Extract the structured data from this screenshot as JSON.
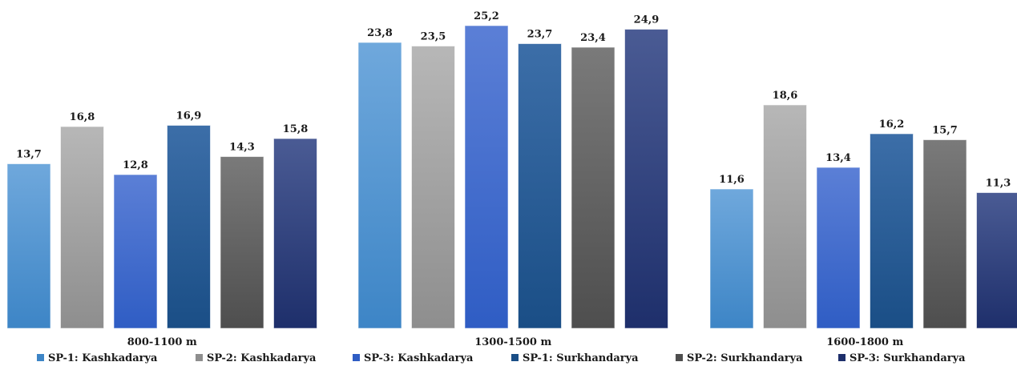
{
  "chart_data": {
    "type": "bar",
    "categories": [
      "800-1100 m",
      "1300-1500 m",
      "1600-1800 m"
    ],
    "series": [
      {
        "name": "SP-1: Kashkadarya",
        "values": [
          13.7,
          23.8,
          11.6
        ],
        "labels": [
          "13,7",
          "23,8",
          "11,6"
        ],
        "color_top": "#6fa8dc",
        "color_bottom": "#3d85c6"
      },
      {
        "name": "SP-2: Kashkadarya",
        "values": [
          16.8,
          23.5,
          18.6
        ],
        "labels": [
          "16,8",
          "23,5",
          "18,6"
        ],
        "color_top": "#b7b7b7",
        "color_bottom": "#8e8e8e"
      },
      {
        "name": "SP-3: Kashkadarya",
        "values": [
          12.8,
          25.2,
          13.4
        ],
        "labels": [
          "12,8",
          "25,2",
          "13,4"
        ],
        "color_top": "#5b7fd6",
        "color_bottom": "#2f5dc4"
      },
      {
        "name": "SP-1: Surkhandarya",
        "values": [
          16.9,
          23.7,
          16.2
        ],
        "labels": [
          "16,9",
          "23,7",
          "16,2"
        ],
        "color_top": "#3c6ea8",
        "color_bottom": "#1a4e86"
      },
      {
        "name": "SP-2: Surkhandarya",
        "values": [
          14.3,
          23.4,
          15.7
        ],
        "labels": [
          "14,3",
          "23,4",
          "15,7"
        ],
        "color_top": "#7a7a7a",
        "color_bottom": "#4e4e4e"
      },
      {
        "name": "SP-3: Surkhandarya",
        "values": [
          15.8,
          24.9,
          11.3
        ],
        "labels": [
          "15,8",
          "24,9",
          "11,3"
        ],
        "color_top": "#4a5b94",
        "color_bottom": "#1e2f6b"
      }
    ],
    "xlabel": "",
    "ylabel": "",
    "ylim": [
      0,
      27
    ],
    "grid": false,
    "legend_position": "bottom"
  }
}
